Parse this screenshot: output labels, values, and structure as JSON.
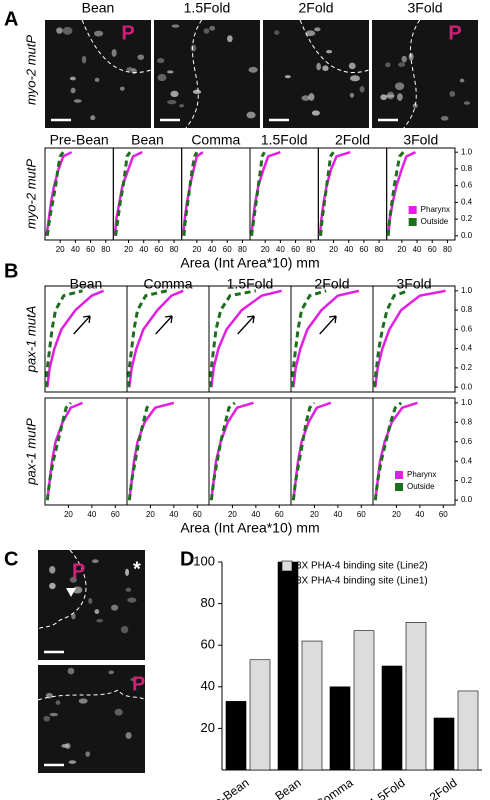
{
  "figure": {
    "panel_labels": [
      "A",
      "B",
      "C",
      "D"
    ],
    "panel_a_images": {
      "row_label": "myo-2 mutP",
      "images": [
        {
          "title": "Bean",
          "marker": "P"
        },
        {
          "title": "1.5Fold"
        },
        {
          "title": "2Fold"
        },
        {
          "title": "3Fold",
          "marker": "P"
        }
      ]
    },
    "panel_c_images": {
      "markers": [
        "P",
        "*",
        "P"
      ]
    }
  },
  "chart_data": [
    {
      "type": "line",
      "row_label": "myo-2 mutP",
      "x_label": "Area (Int Area*10) mm",
      "xlim": [
        0,
        90
      ],
      "xticks": [
        20,
        40,
        60,
        80
      ],
      "ylim": [
        -0.05,
        1.05
      ],
      "yticks": [
        {
          "value": 0,
          "label": "0.0"
        },
        {
          "value": 0.2,
          "label": "0.2"
        },
        {
          "value": 0.4,
          "label": "0.4"
        },
        {
          "value": 0.6,
          "label": "0.6"
        },
        {
          "value": 0.8,
          "label": "0.8"
        },
        {
          "value": 1,
          "label": "1.0"
        }
      ],
      "y": [
        0,
        0.2,
        0.4,
        0.6,
        0.8,
        0.95,
        1
      ],
      "legend": true,
      "series": [
        {
          "name": "Pharynx",
          "color": "#e31ee3"
        },
        {
          "name": "Outside",
          "color": "#1f6e1f",
          "dashed": true
        }
      ],
      "facets": [
        {
          "title": "Pre-Bean",
          "values": [
            [
              2,
              5,
              8,
              12,
              18,
              24,
              35
            ],
            [
              3,
              6,
              10,
              14,
              17,
              20,
              24
            ]
          ]
        },
        {
          "title": "Bean",
          "values": [
            [
              2,
              4,
              8,
              12,
              20,
              26,
              38
            ],
            [
              3,
              6,
              9,
              13,
              16,
              18,
              22
            ]
          ]
        },
        {
          "title": "Comma",
          "values": [
            [
              2,
              4,
              7,
              11,
              16,
              20,
              28
            ],
            [
              3,
              5,
              8,
              11,
              14,
              17,
              20
            ]
          ]
        },
        {
          "title": "1.5Fold",
          "values": [
            [
              2,
              4,
              7,
              11,
              18,
              24,
              40
            ],
            [
              2,
              5,
              8,
              11,
              14,
              16,
              19
            ]
          ]
        },
        {
          "title": "2Fold",
          "values": [
            [
              2,
              4,
              7,
              11,
              17,
              24,
              42
            ],
            [
              3,
              5,
              8,
              11,
              14,
              16,
              20
            ]
          ]
        },
        {
          "title": "3Fold",
          "values": [
            [
              2,
              4,
              8,
              13,
              20,
              26,
              38
            ],
            [
              2,
              4,
              7,
              10,
              14,
              17,
              22
            ]
          ]
        }
      ]
    },
    {
      "type": "line",
      "row_label": "pax-1 mutA",
      "xlim": [
        0,
        70
      ],
      "ylim": [
        -0.05,
        1.05
      ],
      "yticks": [
        {
          "value": 0,
          "label": "0.0"
        },
        {
          "value": 0.2,
          "label": "0.2"
        },
        {
          "value": 0.4,
          "label": "0.4"
        },
        {
          "value": 0.6,
          "label": "0.6"
        },
        {
          "value": 0.8,
          "label": "0.8"
        },
        {
          "value": 1,
          "label": "1.0"
        }
      ],
      "y": [
        0,
        0.2,
        0.4,
        0.6,
        0.8,
        0.95,
        1
      ],
      "legend": false,
      "series": [
        {
          "name": "Pharynx",
          "color": "#e31ee3"
        },
        {
          "name": "Outside",
          "color": "#1f6e1f",
          "dashed": true
        }
      ],
      "facets": [
        {
          "title": "Bean",
          "arrow": true,
          "values": [
            [
              2,
              4,
              8,
              14,
              26,
              40,
              50
            ],
            [
              1,
              2,
              4,
              6,
              9,
              16,
              32
            ]
          ]
        },
        {
          "title": "Comma",
          "arrow": true,
          "values": [
            [
              2,
              4,
              8,
              14,
              26,
              38,
              48
            ],
            [
              1,
              2,
              4,
              6,
              9,
              16,
              34
            ]
          ]
        },
        {
          "title": "1.5Fold",
          "arrow": true,
          "values": [
            [
              2,
              4,
              8,
              15,
              28,
              45,
              62
            ],
            [
              1,
              2,
              4,
              6,
              10,
              18,
              40
            ]
          ]
        },
        {
          "title": "2Fold",
          "arrow": true,
          "values": [
            [
              2,
              4,
              8,
              14,
              26,
              40,
              58
            ],
            [
              1,
              2,
              4,
              6,
              9,
              16,
              30
            ]
          ]
        },
        {
          "title": "3Fold",
          "values": [
            [
              2,
              4,
              8,
              14,
              24,
              40,
              62
            ],
            [
              1,
              3,
              5,
              8,
              12,
              18,
              30
            ]
          ]
        }
      ]
    },
    {
      "type": "line",
      "row_label": "pax-1 mutP",
      "x_label": "Area (Int Area*10) mm",
      "xlim": [
        0,
        70
      ],
      "xticks": [
        20,
        40,
        60
      ],
      "ylim": [
        -0.05,
        1.05
      ],
      "yticks": [
        {
          "value": 0,
          "label": "0.0"
        },
        {
          "value": 0.2,
          "label": "0.2"
        },
        {
          "value": 0.4,
          "label": "0.4"
        },
        {
          "value": 0.6,
          "label": "0.6"
        },
        {
          "value": 0.8,
          "label": "0.8"
        },
        {
          "value": 1,
          "label": "1.0"
        }
      ],
      "y": [
        0,
        0.2,
        0.4,
        0.6,
        0.8,
        0.95,
        1
      ],
      "legend": true,
      "series": [
        {
          "name": "Pharynx",
          "color": "#e31ee3"
        },
        {
          "name": "Outside",
          "color": "#1f6e1f",
          "dashed": true
        }
      ],
      "facets": [
        {
          "values": [
            [
              2,
              4,
              6,
              9,
              15,
              22,
              32
            ],
            [
              2,
              4,
              7,
              11,
              15,
              18,
              22
            ]
          ]
        },
        {
          "values": [
            [
              2,
              4,
              6,
              9,
              15,
              24,
              40
            ],
            [
              2,
              4,
              7,
              10,
              14,
              17,
              20
            ]
          ]
        },
        {
          "values": [
            [
              2,
              4,
              6,
              10,
              16,
              24,
              38
            ],
            [
              2,
              4,
              7,
              10,
              14,
              17,
              22
            ]
          ]
        },
        {
          "values": [
            [
              2,
              4,
              6,
              9,
              15,
              22,
              34
            ],
            [
              2,
              4,
              7,
              10,
              13,
              16,
              20
            ]
          ]
        },
        {
          "values": [
            [
              2,
              4,
              6,
              10,
              16,
              25,
              38
            ],
            [
              2,
              4,
              7,
              11,
              15,
              19,
              24
            ]
          ]
        }
      ]
    },
    {
      "type": "bar",
      "categories": [
        "Pre-Bean",
        "Bean",
        "Comma",
        "1.5Fold",
        "2Fold"
      ],
      "ylim": [
        0,
        100
      ],
      "yticks": [
        20,
        40,
        60,
        80,
        100
      ],
      "series": [
        {
          "name": "3X PHA-4 binding site (Line1)",
          "color": "#000000",
          "values": [
            33,
            100,
            40,
            50,
            25
          ]
        },
        {
          "name": "3X PHA-4 binding site (Line2)",
          "color": "#dcdcdc",
          "values": [
            53,
            62,
            67,
            71,
            38
          ]
        }
      ]
    }
  ]
}
